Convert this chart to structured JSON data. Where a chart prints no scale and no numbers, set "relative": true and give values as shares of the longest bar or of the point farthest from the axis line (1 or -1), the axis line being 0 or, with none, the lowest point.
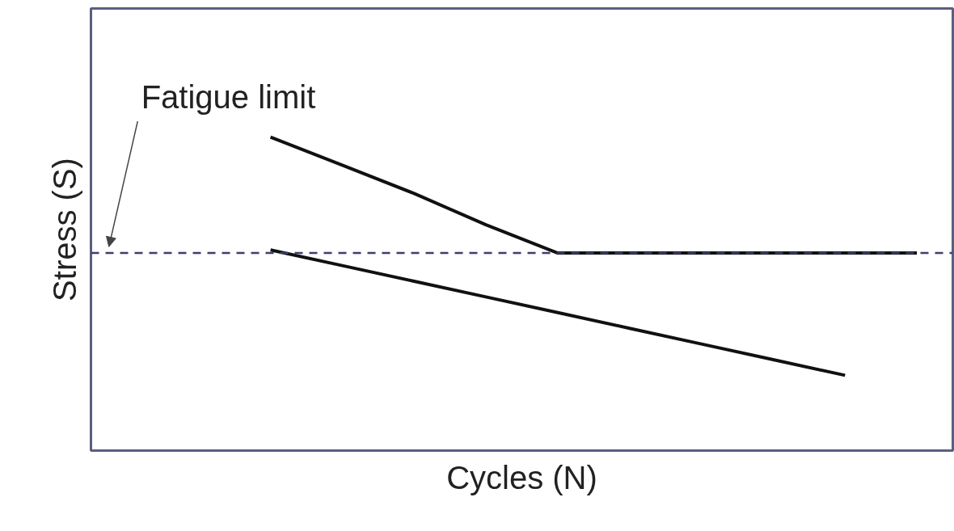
{
  "chart_data": {
    "type": "line",
    "relative": true,
    "xlabel": "Cycles (N)",
    "ylabel": "Stress (S)",
    "categories": [
      null,
      null,
      null,
      null,
      null,
      null,
      null,
      null,
      null,
      null,
      null,
      null
    ],
    "series": [
      {
        "color": "#111111",
        "values": [
          null,
          null,
          1.0,
          0.91,
          0.82,
          0.72,
          0.63,
          0.63,
          0.63,
          0.63,
          0.63,
          0.63
        ]
      },
      {
        "color": "#111111",
        "values": [
          null,
          null,
          0.64,
          0.59,
          0.54,
          0.49,
          0.44,
          0.39,
          0.34,
          0.29,
          0.24,
          null
        ]
      }
    ],
    "ref_lines": [
      {
        "axis": "y",
        "value": 0.63,
        "label": "Fatigue limit",
        "color": "#3a3f6e",
        "line_style": "dashed"
      }
    ],
    "marker": "none",
    "line_style": "solid"
  }
}
